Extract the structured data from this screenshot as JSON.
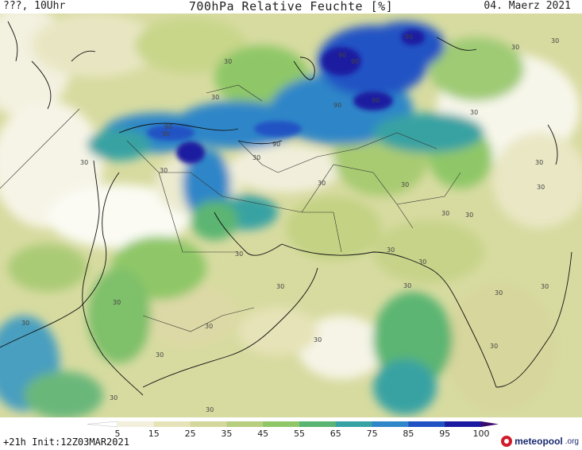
{
  "header": {
    "left": "???, 10Uhr",
    "title": "700hPa Relative Feuchte [%]",
    "date": "04. Maerz 2021"
  },
  "footer": {
    "forecast": "+21h Init:12Z03MAR2021",
    "logo_name": "meteopool",
    "logo_tld": ".org",
    "logo_icon": "meteopool-logo-icon"
  },
  "legend": {
    "ticks": [
      "5",
      "15",
      "25",
      "35",
      "45",
      "55",
      "65",
      "75",
      "85",
      "95",
      "100"
    ],
    "colors": [
      "#ffffff",
      "#f2efdd",
      "#e6e3b8",
      "#d3d79b",
      "#b6ce7d",
      "#8fc767",
      "#5bb572",
      "#37a2a3",
      "#2f86c8",
      "#2152c4",
      "#1c1aa0",
      "#3a0a6b"
    ]
  },
  "map": {
    "contour_labels": [
      "90",
      "90",
      "90",
      "90",
      "90",
      "90",
      "90",
      "90",
      "30",
      "30",
      "30",
      "30",
      "30",
      "30",
      "30",
      "30",
      "30",
      "30",
      "30",
      "30",
      "30",
      "30",
      "30",
      "30",
      "30",
      "30",
      "30",
      "30",
      "30",
      "30",
      "30",
      "30",
      "30",
      "30",
      "30",
      "30",
      "30"
    ]
  }
}
